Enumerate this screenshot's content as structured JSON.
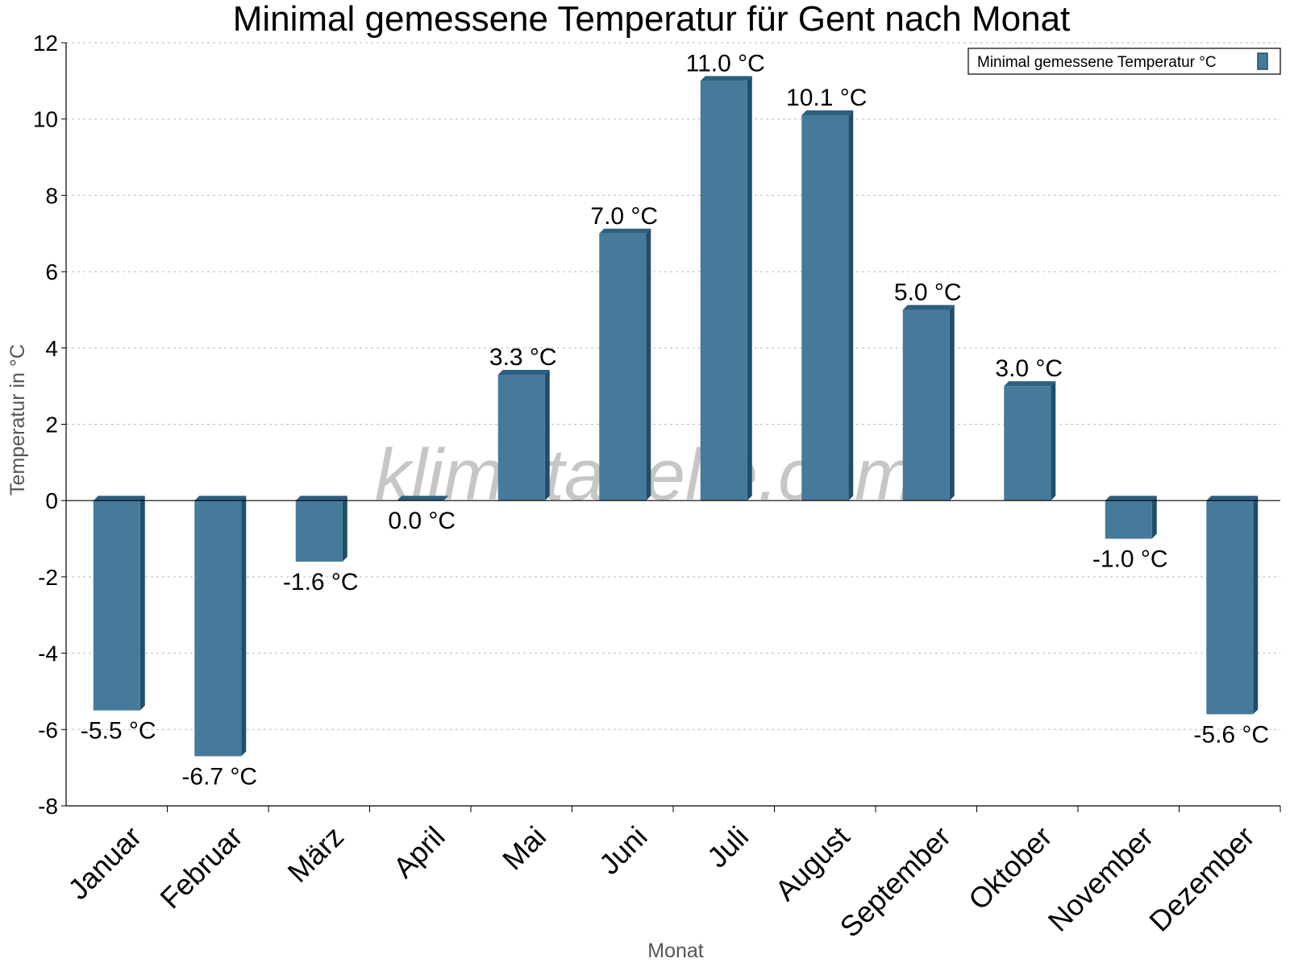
{
  "colors": {
    "bar_front": "#467a9b",
    "bar_side": "#1f4e6b",
    "bar_top": "#2e5f7f",
    "grid": "#bbbbbb",
    "axis": "#000000"
  },
  "watermark": "klimatabelle.com",
  "chart_data": {
    "type": "bar",
    "title": "Minimal gemessene Temperatur für Gent nach Monat",
    "xlabel": "Monat",
    "ylabel": "Temperatur in °C",
    "ylim": [
      -8,
      12
    ],
    "yticks": [
      -8,
      -6,
      -4,
      -2,
      0,
      2,
      4,
      6,
      8,
      10,
      12
    ],
    "grid": true,
    "legend_position": "top-right",
    "categories": [
      "Januar",
      "Februar",
      "März",
      "April",
      "Mai",
      "Juni",
      "Juli",
      "August",
      "September",
      "Oktober",
      "November",
      "Dezember"
    ],
    "series": [
      {
        "name": "Minimal gemessene Temperatur °C",
        "values": [
          -5.5,
          -6.7,
          -1.6,
          0.0,
          3.3,
          7.0,
          11.0,
          10.1,
          5.0,
          3.0,
          -1.0,
          -5.6
        ],
        "labels": [
          "-5.5 °C",
          "-6.7 °C",
          "-1.6 °C",
          "0.0 °C",
          "3.3 °C",
          "7.0 °C",
          "11.0 °C",
          "10.1 °C",
          "5.0 °C",
          "3.0 °C",
          "-1.0 °C",
          "-5.6 °C"
        ]
      }
    ]
  }
}
